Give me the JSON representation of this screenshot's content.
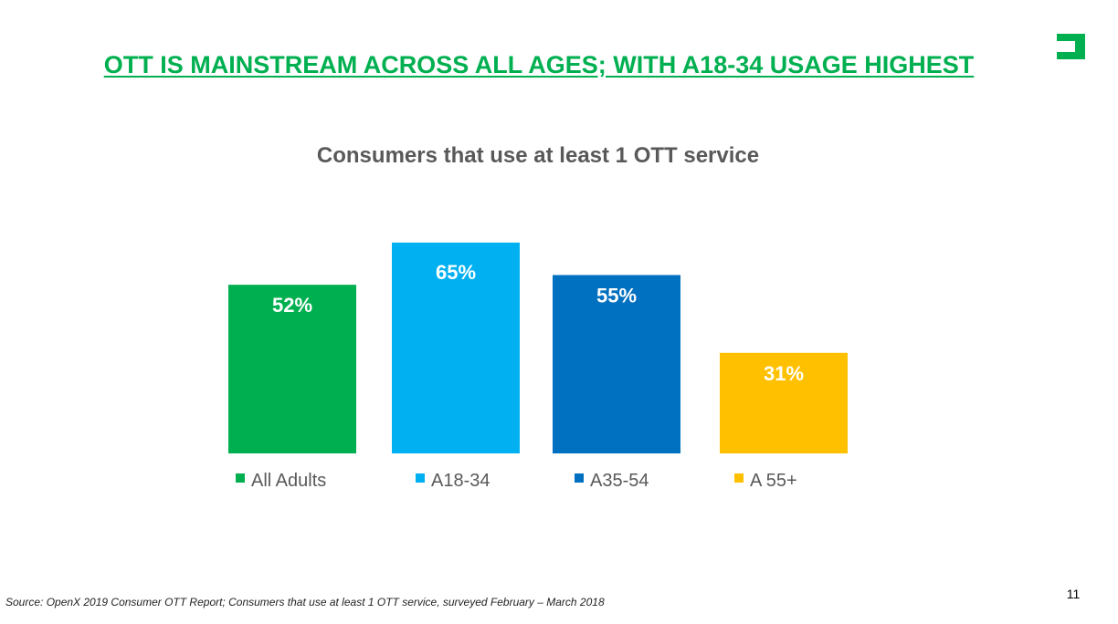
{
  "slide": {
    "title": "OTT IS MAINSTREAM ACROSS ALL AGES; WITH A18-34 USAGE HIGHEST",
    "source": "Source: OpenX 2019 Consumer OTT Report; Consumers that use at least 1 OTT service, surveyed February – March 2018",
    "page_number": "11",
    "logo": {
      "icon": "bracket-logo-icon",
      "color": "#00b050"
    }
  },
  "chart_data": {
    "type": "bar",
    "title": "Consumers that use at least 1 OTT service",
    "xlabel": "",
    "ylabel": "",
    "categories": [
      "All Adults",
      "A18-34",
      "A35-54",
      "A 55+"
    ],
    "values": [
      52,
      65,
      55,
      31
    ],
    "data_labels": [
      "52%",
      "65%",
      "55%",
      "31%"
    ],
    "colors": [
      "#00b050",
      "#00b0f0",
      "#0070c0",
      "#ffc000"
    ],
    "ylim": [
      0,
      100
    ],
    "grid": false,
    "legend": "bottom"
  }
}
